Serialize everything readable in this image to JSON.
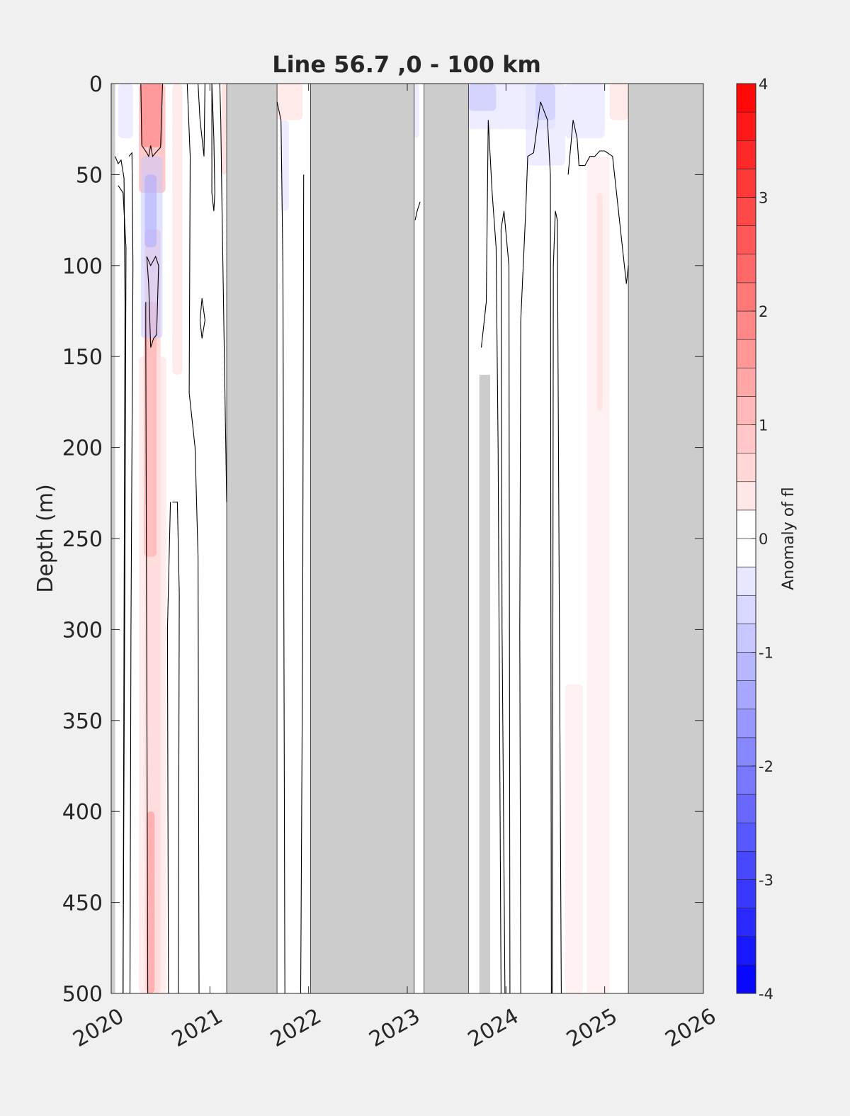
{
  "chart_data": {
    "type": "heatmap",
    "title": "Line 56.7 ,0 - 100 km",
    "xlabel": "",
    "ylabel": "Depth (m)",
    "colorbar_label": "Anomaly of fl",
    "x_tick_labels": [
      "2020",
      "2021",
      "2022",
      "2023",
      "2024",
      "2025",
      "2026"
    ],
    "x_ticks": [
      2020,
      2021,
      2022,
      2023,
      2024,
      2025,
      2026
    ],
    "xlim": [
      2020,
      2026
    ],
    "y_tick_labels": [
      "0",
      "50",
      "100",
      "150",
      "200",
      "250",
      "300",
      "350",
      "400",
      "450",
      "500"
    ],
    "y_ticks": [
      0,
      50,
      100,
      150,
      200,
      250,
      300,
      350,
      400,
      450,
      500
    ],
    "ylim": [
      0,
      500
    ],
    "y_reversed": true,
    "colorbar_tick_labels": [
      "4",
      "3",
      "2",
      "1",
      "0",
      "-1",
      "-2",
      "-3",
      "-4"
    ],
    "colorbar_ticks": [
      4,
      3,
      2,
      1,
      0,
      -1,
      -2,
      -3,
      -4
    ],
    "clim": [
      -4,
      4
    ],
    "color_levels": 32,
    "colormap": {
      "negative": "#0000ff",
      "zero": "#ffffff",
      "positive": "#ff0000"
    },
    "no_data_color": "#cccccc",
    "no_data_periods": [
      [
        2021.17,
        2021.68
      ],
      [
        2022.02,
        2023.07
      ],
      [
        2023.17,
        2023.62
      ],
      [
        2025.24,
        2026.0
      ]
    ],
    "no_data_partial": [
      {
        "x": [
          2023.73,
          2023.84
        ],
        "depth": [
          160,
          500
        ]
      },
      {
        "x": [
          2020.0,
          2020.04
        ],
        "depth": [
          0,
          500
        ]
      }
    ],
    "anomaly_patches": [
      {
        "x": [
          2020.3,
          2020.52
        ],
        "depth": [
          0,
          35
        ],
        "value": 3.0
      },
      {
        "x": [
          2020.28,
          2020.55
        ],
        "depth": [
          0,
          60
        ],
        "value": 1.5
      },
      {
        "x": [
          2020.34,
          2020.5
        ],
        "depth": [
          80,
          500
        ],
        "value": 1.0
      },
      {
        "x": [
          2020.28,
          2020.56
        ],
        "depth": [
          150,
          500
        ],
        "value": 0.5
      },
      {
        "x": [
          2020.33,
          2020.46
        ],
        "depth": [
          120,
          260
        ],
        "value": 1.4
      },
      {
        "x": [
          2020.36,
          2020.44
        ],
        "depth": [
          400,
          500
        ],
        "value": 1.8
      },
      {
        "x": [
          2020.62,
          2020.72
        ],
        "depth": [
          0,
          160
        ],
        "value": 0.6
      },
      {
        "x": [
          2021.12,
          2021.17
        ],
        "depth": [
          0,
          50
        ],
        "value": 0.8
      },
      {
        "x": [
          2021.68,
          2021.94
        ],
        "depth": [
          0,
          20
        ],
        "value": 0.6
      },
      {
        "x": [
          2024.6,
          2024.78
        ],
        "depth": [
          330,
          500
        ],
        "value": 0.4
      },
      {
        "x": [
          2024.82,
          2025.05
        ],
        "depth": [
          40,
          500
        ],
        "value": 0.4
      },
      {
        "x": [
          2024.92,
          2024.98
        ],
        "depth": [
          60,
          180
        ],
        "value": 0.6
      },
      {
        "x": [
          2025.05,
          2025.24
        ],
        "depth": [
          0,
          20
        ],
        "value": 0.6
      },
      {
        "x": [
          2020.07,
          2020.22
        ],
        "depth": [
          0,
          30
        ],
        "value": -0.5
      },
      {
        "x": [
          2020.3,
          2020.52
        ],
        "depth": [
          40,
          140
        ],
        "value": -0.9
      },
      {
        "x": [
          2020.34,
          2020.46
        ],
        "depth": [
          50,
          90
        ],
        "value": -1.3
      },
      {
        "x": [
          2021.72,
          2021.8
        ],
        "depth": [
          20,
          70
        ],
        "value": -0.5
      },
      {
        "x": [
          2023.07,
          2023.12
        ],
        "depth": [
          0,
          30
        ],
        "value": -0.5
      },
      {
        "x": [
          2023.62,
          2024.5
        ],
        "depth": [
          0,
          25
        ],
        "value": -0.5
      },
      {
        "x": [
          2023.62,
          2023.9
        ],
        "depth": [
          0,
          15
        ],
        "value": -1.0
      },
      {
        "x": [
          2024.2,
          2024.6
        ],
        "depth": [
          0,
          45
        ],
        "value": -0.5
      },
      {
        "x": [
          2024.3,
          2024.5
        ],
        "depth": [
          0,
          20
        ],
        "value": -0.9
      },
      {
        "x": [
          2024.6,
          2025.0
        ],
        "depth": [
          0,
          30
        ],
        "value": -0.5
      }
    ],
    "contour_level": 0,
    "zero_contours": [
      [
        [
          2020.04,
          40
        ],
        [
          2020.07,
          44
        ],
        [
          2020.1,
          42
        ],
        [
          2020.13,
          52
        ],
        [
          2020.14,
          120
        ],
        [
          2020.13,
          300
        ],
        [
          2020.12,
          500
        ]
      ],
      [
        [
          2020.07,
          56
        ],
        [
          2020.12,
          60
        ],
        [
          2020.15,
          90
        ],
        [
          2020.14,
          250
        ],
        [
          2020.12,
          500
        ]
      ],
      [
        [
          2020.18,
          40
        ],
        [
          2020.21,
          38
        ],
        [
          2020.22,
          100
        ],
        [
          2020.2,
          300
        ],
        [
          2020.19,
          500
        ]
      ],
      [
        [
          2020.3,
          0
        ],
        [
          2020.31,
          34
        ],
        [
          2020.36,
          38
        ],
        [
          2020.38,
          40
        ],
        [
          2020.4,
          34
        ],
        [
          2020.42,
          40
        ],
        [
          2020.45,
          38
        ],
        [
          2020.5,
          35
        ],
        [
          2020.52,
          0
        ]
      ],
      [
        [
          2020.36,
          95
        ],
        [
          2020.38,
          110
        ],
        [
          2020.4,
          145
        ],
        [
          2020.43,
          140
        ],
        [
          2020.46,
          138
        ],
        [
          2020.48,
          100
        ],
        [
          2020.45,
          95
        ],
        [
          2020.4,
          100
        ],
        [
          2020.36,
          95
        ]
      ],
      [
        [
          2020.35,
          120
        ],
        [
          2020.35,
          140
        ],
        [
          2020.37,
          500
        ]
      ],
      [
        [
          2020.62,
          230
        ],
        [
          2020.67,
          230
        ],
        [
          2020.69,
          280
        ],
        [
          2020.68,
          500
        ]
      ],
      [
        [
          2020.58,
          500
        ],
        [
          2020.57,
          300
        ],
        [
          2020.6,
          230
        ]
      ],
      [
        [
          2020.77,
          0
        ],
        [
          2020.8,
          40
        ],
        [
          2020.79,
          170
        ],
        [
          2020.85,
          200
        ],
        [
          2020.88,
          260
        ],
        [
          2020.89,
          500
        ]
      ],
      [
        [
          2020.88,
          0
        ],
        [
          2020.9,
          20
        ],
        [
          2020.92,
          30
        ],
        [
          2020.94,
          40
        ],
        [
          2020.95,
          0
        ]
      ],
      [
        [
          2020.92,
          118
        ],
        [
          2020.95,
          130
        ],
        [
          2020.92,
          140
        ],
        [
          2020.9,
          130
        ],
        [
          2020.92,
          118
        ]
      ],
      [
        [
          2021.02,
          0
        ],
        [
          2021.04,
          30
        ],
        [
          2021.05,
          60
        ],
        [
          2021.04,
          70
        ],
        [
          2021.02,
          60
        ],
        [
          2021.02,
          0
        ]
      ],
      [
        [
          2021.1,
          0
        ],
        [
          2021.11,
          20
        ],
        [
          2021.12,
          60
        ],
        [
          2021.17,
          230
        ]
      ],
      [
        [
          2021.68,
          10
        ],
        [
          2021.72,
          20
        ],
        [
          2021.74,
          100
        ],
        [
          2021.75,
          300
        ],
        [
          2021.76,
          500
        ]
      ],
      [
        [
          2021.95,
          50
        ],
        [
          2021.94,
          300
        ],
        [
          2021.92,
          500
        ]
      ],
      [
        [
          2023.08,
          75
        ],
        [
          2023.1,
          70
        ],
        [
          2023.13,
          65
        ]
      ],
      [
        [
          2023.75,
          145
        ],
        [
          2023.8,
          120
        ],
        [
          2023.82,
          20
        ],
        [
          2023.86,
          60
        ],
        [
          2023.9,
          90
        ],
        [
          2023.92,
          200
        ],
        [
          2023.95,
          500
        ]
      ],
      [
        [
          2023.99,
          500
        ],
        [
          2023.96,
          300
        ],
        [
          2023.95,
          80
        ],
        [
          2023.98,
          70
        ],
        [
          2024.03,
          100
        ],
        [
          2024.04,
          500
        ]
      ],
      [
        [
          2024.15,
          500
        ],
        [
          2024.14,
          300
        ],
        [
          2024.15,
          130
        ],
        [
          2024.2,
          70
        ],
        [
          2024.22,
          40
        ],
        [
          2024.28,
          38
        ],
        [
          2024.35,
          10
        ],
        [
          2024.42,
          20
        ],
        [
          2024.45,
          50
        ],
        [
          2024.46,
          500
        ]
      ],
      [
        [
          2024.47,
          500
        ],
        [
          2024.48,
          100
        ],
        [
          2024.5,
          70
        ],
        [
          2024.52,
          75
        ],
        [
          2024.56,
          500
        ]
      ],
      [
        [
          2024.63,
          50
        ],
        [
          2024.68,
          20
        ],
        [
          2024.72,
          30
        ],
        [
          2024.74,
          45
        ],
        [
          2024.8,
          45
        ],
        [
          2024.85,
          40
        ],
        [
          2024.9,
          40
        ],
        [
          2024.95,
          37
        ],
        [
          2025.0,
          37
        ],
        [
          2025.08,
          40
        ],
        [
          2025.2,
          100
        ],
        [
          2025.22,
          110
        ],
        [
          2025.24,
          100
        ]
      ]
    ],
    "grid": false,
    "legend": "none",
    "colorbar": "right"
  }
}
